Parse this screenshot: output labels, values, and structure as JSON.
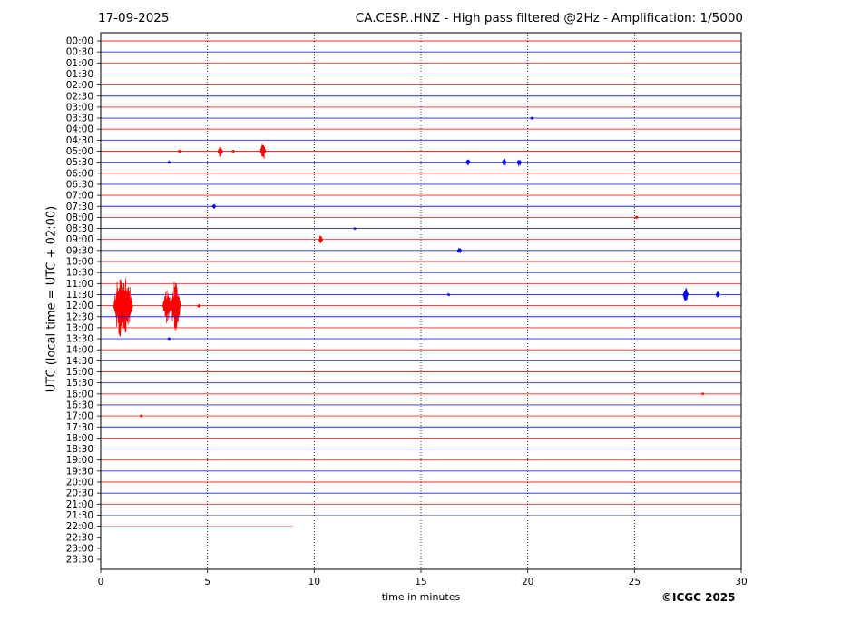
{
  "header": {
    "date": "17-09-2025",
    "title": "CA.CESP..HNZ - High pass filtered @2Hz - Amplification: 1/5000"
  },
  "footer": {
    "copyright": "©ICGC 2025"
  },
  "chart_data": {
    "type": "line",
    "title": "CA.CESP..HNZ - High pass filtered @2Hz - Amplification: 1/5000",
    "xlabel": "time in minutes",
    "ylabel": "UTC (local time = UTC + 02:00)",
    "xlim": [
      0,
      30
    ],
    "xticks": [
      0,
      5,
      10,
      15,
      20,
      25,
      30
    ],
    "grid": "vertical dotted at 5-minute intervals",
    "trace_colors": [
      "#ff0000",
      "#0000ff"
    ],
    "row_labels": [
      "00:00",
      "00:30",
      "01:00",
      "01:30",
      "02:00",
      "02:30",
      "03:00",
      "03:30",
      "04:00",
      "04:30",
      "05:00",
      "05:30",
      "06:00",
      "06:30",
      "07:00",
      "07:30",
      "08:00",
      "08:30",
      "09:00",
      "09:30",
      "10:00",
      "10:30",
      "11:00",
      "11:30",
      "12:00",
      "12:30",
      "13:00",
      "13:30",
      "14:00",
      "14:30",
      "15:00",
      "15:30",
      "16:00",
      "16:30",
      "17:00",
      "17:30",
      "18:00",
      "18:30",
      "19:00",
      "19:30",
      "20:00",
      "20:30",
      "21:00",
      "21:30",
      "22:00",
      "22:30",
      "23:00",
      "23:30"
    ],
    "last_trace": {
      "row": "22:00",
      "end_minute": 9
    },
    "events": [
      {
        "row": "03:30",
        "minute": 20.2,
        "amplitude": 0.15
      },
      {
        "row": "05:00",
        "minute": 3.7,
        "amplitude": 0.2
      },
      {
        "row": "05:00",
        "minute": 5.6,
        "amplitude": 0.6
      },
      {
        "row": "05:00",
        "minute": 6.2,
        "amplitude": 0.15
      },
      {
        "row": "05:00",
        "minute": 7.6,
        "amplitude": 0.85
      },
      {
        "row": "05:30",
        "minute": 3.2,
        "amplitude": 0.1
      },
      {
        "row": "05:30",
        "minute": 17.2,
        "amplitude": 0.35
      },
      {
        "row": "05:30",
        "minute": 18.9,
        "amplitude": 0.4
      },
      {
        "row": "05:30",
        "minute": 19.6,
        "amplitude": 0.4
      },
      {
        "row": "07:30",
        "minute": 5.3,
        "amplitude": 0.25
      },
      {
        "row": "08:00",
        "minute": 25.1,
        "amplitude": 0.15
      },
      {
        "row": "08:30",
        "minute": 11.9,
        "amplitude": 0.12
      },
      {
        "row": "09:00",
        "minute": 10.3,
        "amplitude": 0.4
      },
      {
        "row": "09:30",
        "minute": 16.8,
        "amplitude": 0.4
      },
      {
        "row": "11:30",
        "minute": 16.3,
        "amplitude": 0.1
      },
      {
        "row": "11:30",
        "minute": 27.4,
        "amplitude": 0.75
      },
      {
        "row": "11:30",
        "minute": 28.9,
        "amplitude": 0.35
      },
      {
        "row": "12:00",
        "minute": 0.9,
        "amplitude": 2.8
      },
      {
        "row": "12:00",
        "minute": 1.2,
        "amplitude": 2.8
      },
      {
        "row": "12:00",
        "minute": 3.1,
        "amplitude": 1.6
      },
      {
        "row": "12:00",
        "minute": 3.5,
        "amplitude": 2.3
      },
      {
        "row": "12:00",
        "minute": 4.6,
        "amplitude": 0.2
      },
      {
        "row": "13:30",
        "minute": 3.2,
        "amplitude": 0.1
      },
      {
        "row": "16:00",
        "minute": 28.2,
        "amplitude": 0.12
      },
      {
        "row": "17:00",
        "minute": 1.9,
        "amplitude": 0.1
      }
    ]
  }
}
